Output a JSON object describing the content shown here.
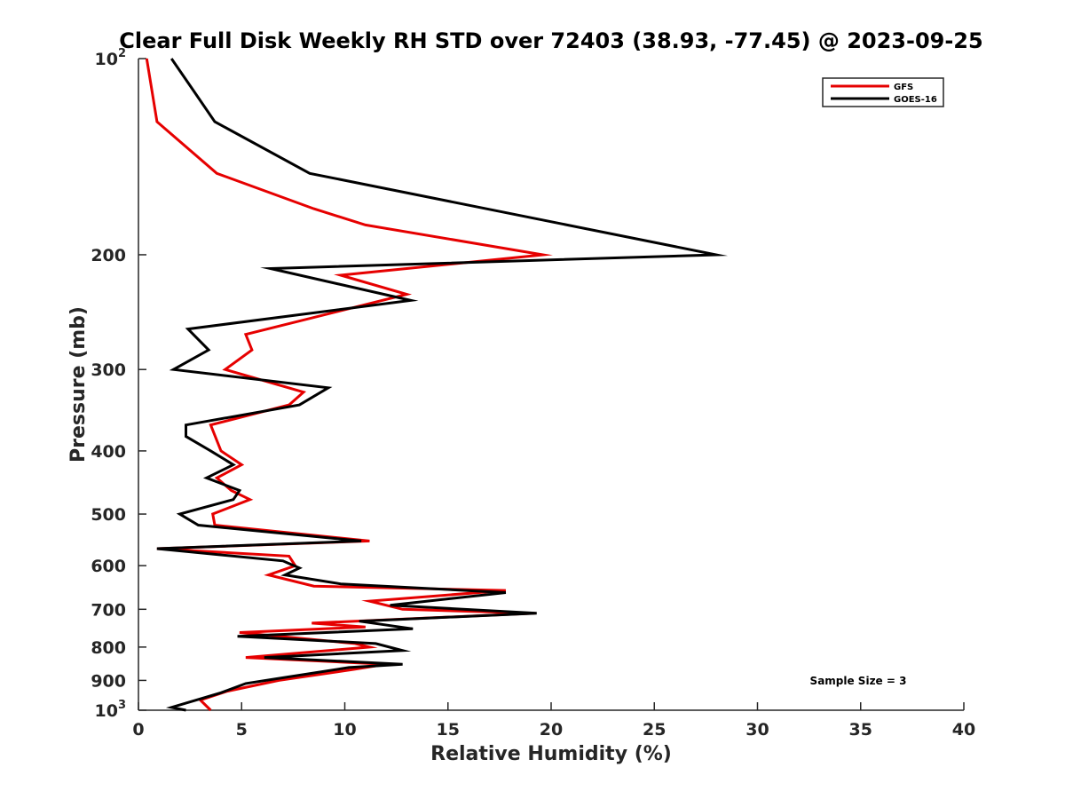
{
  "chart_data": {
    "type": "line",
    "title": "Clear Full Disk Weekly RH STD over 72403 (38.93, -77.45) @ 2023-09-25",
    "xlabel": "Relative Humidity (%)",
    "ylabel": "Pressure (mb)",
    "xlim": [
      0,
      40
    ],
    "ylim": [
      100,
      1000
    ],
    "y_scale": "log",
    "y_reversed": true,
    "grid": false,
    "legend_position": "top-right",
    "x_ticks": [
      "0",
      "5",
      "10",
      "15",
      "20",
      "25",
      "30",
      "35",
      "40"
    ],
    "y_ticks": [
      {
        "value": 100,
        "base": "10",
        "exp": "2"
      },
      {
        "value": 200,
        "label": "200"
      },
      {
        "value": 300,
        "label": "300"
      },
      {
        "value": 400,
        "label": "400"
      },
      {
        "value": 500,
        "label": "500"
      },
      {
        "value": 600,
        "label": "600"
      },
      {
        "value": 700,
        "label": "700"
      },
      {
        "value": 800,
        "label": "800"
      },
      {
        "value": 900,
        "label": "900"
      },
      {
        "value": 1000,
        "base": "10",
        "exp": "3"
      }
    ],
    "annotation": "Sample Size = 3",
    "series": [
      {
        "name": "GFS",
        "color": "#e60000",
        "points": [
          {
            "x": 0.4,
            "y": 100
          },
          {
            "x": 0.9,
            "y": 125
          },
          {
            "x": 3.8,
            "y": 150
          },
          {
            "x": 8.5,
            "y": 170
          },
          {
            "x": 11,
            "y": 180
          },
          {
            "x": 19.6,
            "y": 200
          },
          {
            "x": 9.8,
            "y": 215
          },
          {
            "x": 13,
            "y": 230
          },
          {
            "x": 5.2,
            "y": 265
          },
          {
            "x": 5.5,
            "y": 280
          },
          {
            "x": 4.2,
            "y": 300
          },
          {
            "x": 8.0,
            "y": 325
          },
          {
            "x": 7.3,
            "y": 340
          },
          {
            "x": 3.5,
            "y": 365
          },
          {
            "x": 4.0,
            "y": 400
          },
          {
            "x": 5.0,
            "y": 420
          },
          {
            "x": 3.8,
            "y": 440
          },
          {
            "x": 4.5,
            "y": 460
          },
          {
            "x": 5.4,
            "y": 475
          },
          {
            "x": 3.6,
            "y": 500
          },
          {
            "x": 3.7,
            "y": 520
          },
          {
            "x": 11.2,
            "y": 550
          },
          {
            "x": 0.9,
            "y": 565
          },
          {
            "x": 7.3,
            "y": 580
          },
          {
            "x": 7.6,
            "y": 600
          },
          {
            "x": 6.3,
            "y": 620
          },
          {
            "x": 8.5,
            "y": 645
          },
          {
            "x": 17.8,
            "y": 655
          },
          {
            "x": 11.2,
            "y": 680
          },
          {
            "x": 12.8,
            "y": 700
          },
          {
            "x": 19.2,
            "y": 710
          },
          {
            "x": 8.4,
            "y": 735
          },
          {
            "x": 11,
            "y": 745
          },
          {
            "x": 4.9,
            "y": 760
          },
          {
            "x": 10.5,
            "y": 790
          },
          {
            "x": 11.2,
            "y": 800
          },
          {
            "x": 5.2,
            "y": 830
          },
          {
            "x": 12.0,
            "y": 850
          },
          {
            "x": 10.5,
            "y": 865
          },
          {
            "x": 6.8,
            "y": 900
          },
          {
            "x": 4.3,
            "y": 935
          },
          {
            "x": 3.0,
            "y": 965
          },
          {
            "x": 3.5,
            "y": 1000
          }
        ]
      },
      {
        "name": "GOES-16",
        "color": "#000000",
        "points": [
          {
            "x": 1.6,
            "y": 100
          },
          {
            "x": 2.5,
            "y": 110
          },
          {
            "x": 3.7,
            "y": 125
          },
          {
            "x": 8.3,
            "y": 150
          },
          {
            "x": 28,
            "y": 200
          },
          {
            "x": 6.4,
            "y": 210
          },
          {
            "x": 13.2,
            "y": 235
          },
          {
            "x": 2.4,
            "y": 260
          },
          {
            "x": 3.4,
            "y": 280
          },
          {
            "x": 1.7,
            "y": 300
          },
          {
            "x": 9.2,
            "y": 320
          },
          {
            "x": 7.8,
            "y": 340
          },
          {
            "x": 2.3,
            "y": 365
          },
          {
            "x": 2.3,
            "y": 380
          },
          {
            "x": 3.5,
            "y": 400
          },
          {
            "x": 4.6,
            "y": 420
          },
          {
            "x": 3.3,
            "y": 440
          },
          {
            "x": 4.9,
            "y": 460
          },
          {
            "x": 4.6,
            "y": 475
          },
          {
            "x": 2.0,
            "y": 500
          },
          {
            "x": 2.9,
            "y": 520
          },
          {
            "x": 10.8,
            "y": 550
          },
          {
            "x": 0.9,
            "y": 565
          },
          {
            "x": 7.0,
            "y": 590
          },
          {
            "x": 7.8,
            "y": 605
          },
          {
            "x": 7.1,
            "y": 620
          },
          {
            "x": 9.8,
            "y": 640
          },
          {
            "x": 17.8,
            "y": 660
          },
          {
            "x": 12.2,
            "y": 690
          },
          {
            "x": 19.3,
            "y": 710
          },
          {
            "x": 10.7,
            "y": 730
          },
          {
            "x": 13.3,
            "y": 750
          },
          {
            "x": 4.8,
            "y": 770
          },
          {
            "x": 11.5,
            "y": 790
          },
          {
            "x": 12.8,
            "y": 810
          },
          {
            "x": 6.1,
            "y": 830
          },
          {
            "x": 12.8,
            "y": 850
          },
          {
            "x": 10.2,
            "y": 860
          },
          {
            "x": 5.2,
            "y": 910
          },
          {
            "x": 4.0,
            "y": 940
          },
          {
            "x": 1.6,
            "y": 990
          },
          {
            "x": 2.3,
            "y": 1000
          }
        ]
      }
    ]
  }
}
